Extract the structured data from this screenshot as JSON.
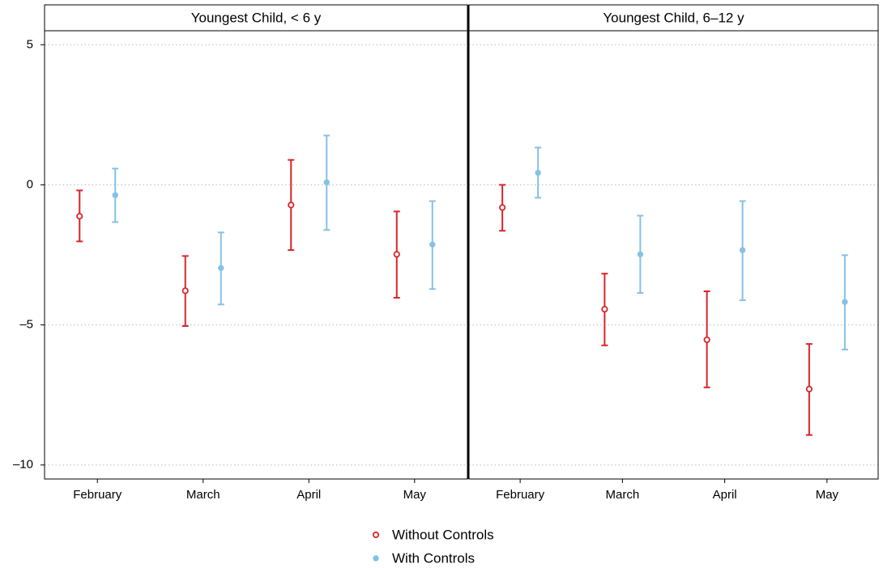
{
  "chart_data": [
    {
      "type": "errorbar",
      "title": "Youngest Child, < 6 y",
      "categories": [
        "February",
        "March",
        "April",
        "May"
      ],
      "ylim": [
        -10.5,
        5.5
      ],
      "yticks": [
        {
          "value": -10,
          "label": "–10"
        },
        {
          "value": -5,
          "label": "–5"
        },
        0,
        5
      ],
      "grid": true,
      "series": [
        {
          "name": "Without Controls",
          "color": "#d7262b",
          "marker": "hollow",
          "values": [
            -1.12,
            -3.78,
            -0.72,
            -2.48
          ],
          "lower": [
            -2.02,
            -5.04,
            -2.33,
            -4.03
          ],
          "upper": [
            -0.2,
            -2.54,
            0.89,
            -0.95
          ]
        },
        {
          "name": "With Controls",
          "color": "#86c1e6",
          "marker": "filled",
          "values": [
            -0.37,
            -2.97,
            0.09,
            -2.13
          ],
          "lower": [
            -1.33,
            -4.27,
            -1.61,
            -3.72
          ],
          "upper": [
            0.58,
            -1.7,
            1.76,
            -0.58
          ]
        }
      ]
    },
    {
      "type": "errorbar",
      "title": "Youngest Child, 6–12 y",
      "categories": [
        "February",
        "March",
        "April",
        "May"
      ],
      "ylim": [
        -10.5,
        5.5
      ],
      "yticks": [
        {
          "value": -10,
          "label": "–10"
        },
        {
          "value": -5,
          "label": "–5"
        },
        0,
        5
      ],
      "grid": true,
      "series": [
        {
          "color": "#d7262b",
          "marker": "hollow",
          "values": [
            -0.81,
            -4.44,
            -5.53,
            -7.29
          ],
          "lower": [
            -1.64,
            -5.73,
            -7.23,
            -8.93
          ],
          "upper": [
            0,
            -3.17,
            -3.8,
            -5.68
          ]
        },
        {
          "color": "#86c1e6",
          "marker": "filled",
          "values": [
            0.43,
            -2.48,
            -2.33,
            -4.18
          ],
          "lower": [
            -0.46,
            -3.86,
            -4.12,
            -5.88
          ],
          "upper": [
            1.33,
            -1.1,
            -0.58,
            -2.51
          ]
        }
      ]
    }
  ]
}
